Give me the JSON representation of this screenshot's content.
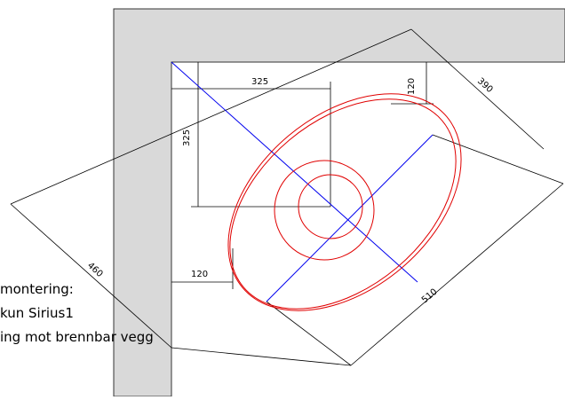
{
  "dimensions": {
    "top_horizontal": "325",
    "left_vertical": "325",
    "top_offset": "120",
    "diagonal_upper": "390",
    "diagonal_left": "460",
    "diagonal_lower": "510",
    "side_offset": "120"
  },
  "notes": [
    "montering:",
    "kun Sirius1",
    "ing mot brennbar vegg"
  ]
}
